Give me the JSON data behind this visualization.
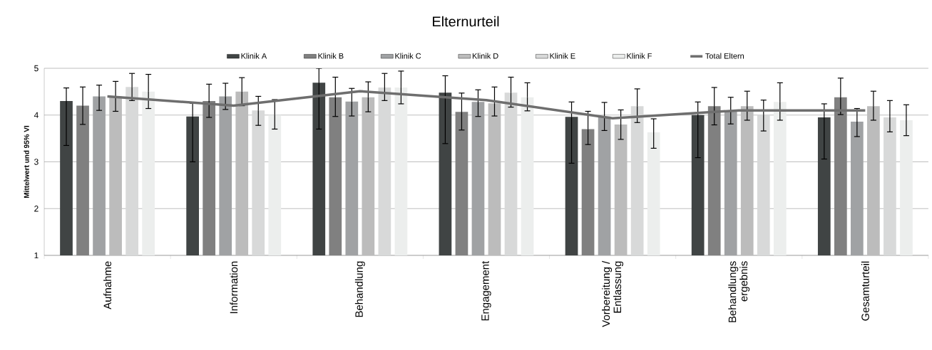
{
  "chart_data": {
    "type": "bar",
    "title": "Elternurteil",
    "ylabel": "Mittelwert und 95% VI",
    "categories": [
      "Aufnahme",
      "Information",
      "Behandlung",
      "Engagement",
      "Vorbereitung / Entlassung",
      "Behandlungs ergebnis",
      "Gesamturteil"
    ],
    "series": [
      {
        "name": "Klinik A",
        "color": "#404444",
        "values": [
          4.3,
          3.97,
          4.69,
          4.48,
          3.96,
          4.0,
          3.95
        ],
        "errors": [
          [
            3.35,
            4.58
          ],
          [
            3.0,
            4.25
          ],
          [
            3.7,
            5.0
          ],
          [
            3.39,
            4.84
          ],
          [
            2.97,
            4.28
          ],
          [
            3.09,
            4.28
          ],
          [
            3.06,
            4.24
          ]
        ]
      },
      {
        "name": "Klinik B",
        "color": "#808080",
        "values": [
          4.2,
          4.3,
          4.38,
          4.07,
          3.7,
          4.19,
          4.38
        ],
        "errors": [
          [
            3.8,
            4.6
          ],
          [
            3.95,
            4.66
          ],
          [
            3.97,
            4.81
          ],
          [
            3.68,
            4.47
          ],
          [
            3.37,
            4.08
          ],
          [
            3.79,
            4.59
          ],
          [
            4.01,
            4.79
          ]
        ]
      },
      {
        "name": "Klinik C",
        "color": "#a0a2a4",
        "values": [
          4.4,
          4.4,
          4.29,
          4.28,
          3.97,
          4.1,
          3.86
        ],
        "errors": [
          [
            4.1,
            4.64
          ],
          [
            4.12,
            4.68
          ],
          [
            3.98,
            4.57
          ],
          [
            3.97,
            4.54
          ],
          [
            3.67,
            4.27
          ],
          [
            3.81,
            4.38
          ],
          [
            3.54,
            4.14
          ]
        ]
      },
      {
        "name": "Klinik D",
        "color": "#bcbcbc",
        "values": [
          4.4,
          4.5,
          4.38,
          4.25,
          3.8,
          4.19,
          4.19
        ],
        "errors": [
          [
            4.08,
            4.72
          ],
          [
            4.2,
            4.8
          ],
          [
            4.07,
            4.71
          ],
          [
            3.98,
            4.6
          ],
          [
            3.48,
            4.11
          ],
          [
            3.89,
            4.51
          ],
          [
            3.89,
            4.51
          ]
        ]
      },
      {
        "name": "Klinik E",
        "color": "#d8d9d9",
        "values": [
          4.6,
          4.1,
          4.59,
          4.48,
          4.19,
          4.0,
          3.95
        ],
        "errors": [
          [
            4.31,
            4.89
          ],
          [
            3.78,
            4.4
          ],
          [
            4.31,
            4.89
          ],
          [
            4.17,
            4.81
          ],
          [
            3.84,
            4.56
          ],
          [
            3.66,
            4.32
          ],
          [
            3.64,
            4.31
          ]
        ]
      },
      {
        "name": "Klinik F",
        "color": "#eceeed",
        "values": [
          4.5,
          4.0,
          4.59,
          4.38,
          3.63,
          4.28,
          3.89
        ],
        "errors": [
          [
            4.14,
            4.87
          ],
          [
            3.7,
            4.33
          ],
          [
            4.24,
            4.94
          ],
          [
            4.09,
            4.69
          ],
          [
            3.29,
            3.92
          ],
          [
            3.89,
            4.69
          ],
          [
            3.56,
            4.22
          ]
        ]
      },
      {
        "name": "Total Eltern",
        "type": "line",
        "color": "#6e6e6e",
        "values": [
          4.4,
          4.2,
          4.51,
          4.32,
          3.93,
          4.1,
          4.1
        ]
      }
    ],
    "ylim": [
      1,
      5
    ],
    "yticks": [
      1,
      2,
      3,
      4,
      5
    ],
    "grid": "y",
    "legend": "top"
  }
}
